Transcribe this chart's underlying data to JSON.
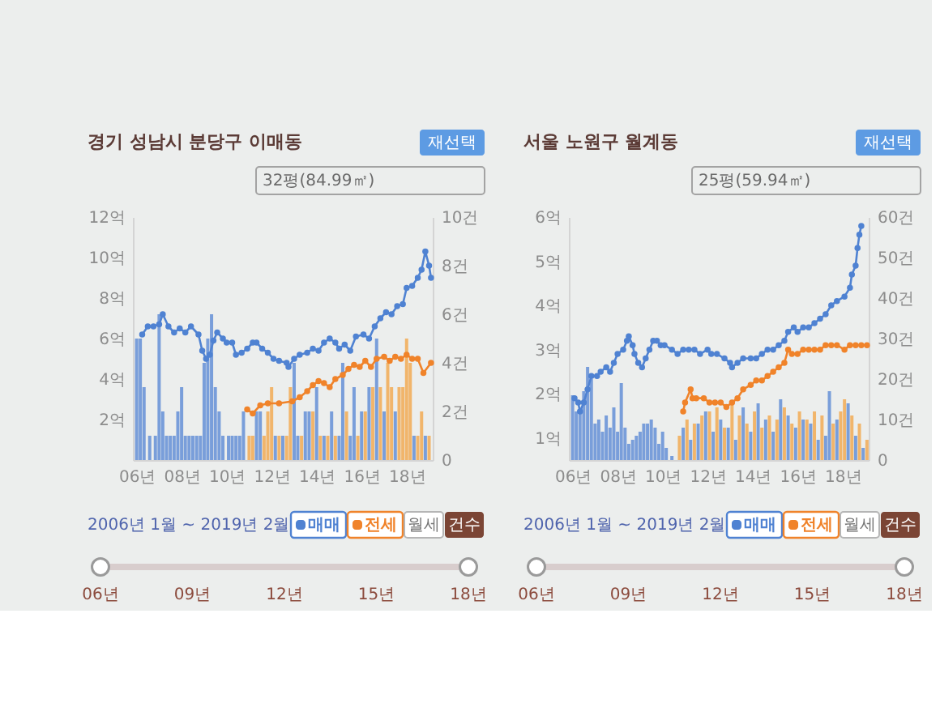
{
  "chart_data": [
    {
      "type": "line",
      "title": "경기 성남시 분당구 이매동",
      "annotations": [
        "재선택",
        "32평(84.99㎡)",
        "2006년 1월 ~ 2019년 2월",
        "월세",
        "건수",
        "06년",
        "09년",
        "12년",
        "15년",
        "18년"
      ],
      "xlim": [
        "2005-11",
        "2019-03"
      ],
      "xticks": [
        {
          "value": "2006",
          "label": "06년"
        },
        {
          "value": "2008",
          "label": "08년"
        },
        {
          "value": "2010",
          "label": "10년"
        },
        {
          "value": "2012",
          "label": "12년"
        },
        {
          "value": "2014",
          "label": "14년"
        },
        {
          "value": "2016",
          "label": "16년"
        },
        {
          "value": "2018",
          "label": "18년"
        }
      ],
      "ylim": [
        0,
        12
      ],
      "yticks": [
        {
          "value": 2,
          "label": "2억"
        },
        {
          "value": 4,
          "label": "4억"
        },
        {
          "value": 6,
          "label": "6억"
        },
        {
          "value": 8,
          "label": "8억"
        },
        {
          "value": 10,
          "label": "10억"
        },
        {
          "value": 12,
          "label": "12억"
        }
      ],
      "y2lim": [
        0,
        10
      ],
      "y2ticks": [
        0,
        {
          "value": 2,
          "label": "2건"
        },
        {
          "value": 4,
          "label": "4건"
        },
        {
          "value": 6,
          "label": "6건"
        },
        {
          "value": 8,
          "label": "8건"
        },
        {
          "value": 10,
          "label": "10건"
        }
      ],
      "legend": "bottom right",
      "marker": "circle",
      "series": [
        {
          "type": "bar",
          "axis": "y2",
          "color": "#5c8ad4",
          "x": [
            "2006-01",
            "2006-03",
            "2006-05",
            "2006-08",
            "2006-11",
            "2007-01",
            "2007-03",
            "2007-05",
            "2007-07",
            "2007-09",
            "2007-11",
            "2008-01",
            "2008-03",
            "2008-05",
            "2008-07",
            "2008-09",
            "2008-11",
            "2009-01",
            "2009-03",
            "2009-05",
            "2009-07",
            "2009-09",
            "2009-11",
            "2010-02",
            "2010-04",
            "2010-06",
            "2010-08",
            "2010-10",
            "2011-05",
            "2011-07",
            "2012-03",
            "2012-07",
            "2013-01",
            "2013-03",
            "2013-07",
            "2013-09",
            "2014-01",
            "2014-05",
            "2014-09",
            "2015-01",
            "2015-03",
            "2015-07",
            "2015-09",
            "2016-01",
            "2016-05",
            "2016-09",
            "2017-01",
            "2017-07",
            "2018-05",
            "2018-11"
          ],
          "values": [
            5,
            5,
            3,
            1,
            1,
            6,
            2,
            1,
            1,
            1,
            2,
            3,
            1,
            1,
            1,
            1,
            1,
            4,
            5,
            6,
            3,
            2,
            1,
            1,
            1,
            1,
            1,
            2,
            2,
            2,
            1,
            1,
            4,
            1,
            2,
            2,
            3,
            1,
            2,
            1,
            4,
            1,
            3,
            2,
            3,
            5,
            2,
            2,
            1,
            1
          ]
        },
        {
          "type": "bar",
          "axis": "y2",
          "color": "#f3a64a",
          "x": [
            "2011-01",
            "2011-03",
            "2011-09",
            "2011-11",
            "2012-01",
            "2012-05",
            "2012-09",
            "2012-11",
            "2013-05",
            "2013-11",
            "2014-03",
            "2014-07",
            "2014-11",
            "2015-05",
            "2015-11",
            "2016-03",
            "2016-07",
            "2016-11",
            "2017-03",
            "2017-05",
            "2017-09",
            "2017-11",
            "2018-01",
            "2018-03",
            "2018-07",
            "2018-09",
            "2019-01"
          ],
          "values": [
            1,
            1,
            1,
            2,
            3,
            1,
            1,
            3,
            1,
            2,
            1,
            1,
            1,
            2,
            1,
            2,
            3,
            3,
            4,
            3,
            3,
            3,
            5,
            4,
            1,
            2,
            1
          ]
        },
        {
          "name": "매매",
          "color": "#4f82d2",
          "x": [
            "2006-04",
            "2006-07",
            "2006-10",
            "2007-01",
            "2007-03",
            "2007-06",
            "2007-09",
            "2007-12",
            "2008-03",
            "2008-06",
            "2008-10",
            "2008-12",
            "2009-02",
            "2009-04",
            "2009-06",
            "2009-08",
            "2009-11",
            "2010-01",
            "2010-04",
            "2010-06",
            "2010-09",
            "2010-12",
            "2011-03",
            "2011-05",
            "2011-08",
            "2011-11",
            "2012-02",
            "2012-05",
            "2012-09",
            "2012-10",
            "2013-01",
            "2013-04",
            "2013-08",
            "2013-11",
            "2014-02",
            "2014-05",
            "2014-08",
            "2014-11",
            "2015-01",
            "2015-04",
            "2015-07",
            "2015-10",
            "2016-02",
            "2016-05",
            "2016-08",
            "2016-11",
            "2017-02",
            "2017-05",
            "2017-08",
            "2017-11",
            "2018-01",
            "2018-04",
            "2018-07",
            "2018-09",
            "2018-11",
            "2019-01",
            "2019-02"
          ],
          "values": [
            6.2,
            6.6,
            6.6,
            6.7,
            7.2,
            6.6,
            6.3,
            6.5,
            6.3,
            6.6,
            6.2,
            5.4,
            5.0,
            5.2,
            5.9,
            6.3,
            6.0,
            5.8,
            5.8,
            5.2,
            5.3,
            5.5,
            5.8,
            5.8,
            5.5,
            5.3,
            5.0,
            4.9,
            4.8,
            4.6,
            5.0,
            5.2,
            5.3,
            5.5,
            5.4,
            5.8,
            6.0,
            5.8,
            5.5,
            5.7,
            5.4,
            6.1,
            6.2,
            6.0,
            6.6,
            7.0,
            7.3,
            7.2,
            7.6,
            7.7,
            8.5,
            8.6,
            9.0,
            9.4,
            10.3,
            9.6,
            9.0
          ]
        },
        {
          "name": "전세",
          "color": "#f0832a",
          "x": [
            "2010-12",
            "2011-03",
            "2011-07",
            "2011-11",
            "2012-05",
            "2012-12",
            "2013-04",
            "2013-08",
            "2013-11",
            "2014-02",
            "2014-05",
            "2014-08",
            "2014-11",
            "2015-03",
            "2015-06",
            "2015-09",
            "2015-12",
            "2016-03",
            "2016-06",
            "2016-09",
            "2017-01",
            "2017-04",
            "2017-07",
            "2017-10",
            "2018-01",
            "2018-04",
            "2018-07",
            "2018-10",
            "2019-02"
          ],
          "values": [
            2.5,
            2.3,
            2.7,
            2.8,
            2.8,
            2.9,
            3.1,
            3.4,
            3.7,
            3.9,
            3.8,
            3.6,
            4.0,
            4.2,
            4.5,
            4.7,
            4.6,
            4.9,
            4.6,
            5.0,
            5.1,
            4.9,
            5.1,
            5.0,
            5.2,
            5.0,
            5.0,
            4.3,
            4.8
          ]
        }
      ]
    },
    {
      "type": "line",
      "title": "서울 노원구 월계동",
      "annotations": [
        "재선택",
        "25평(59.94㎡)",
        "2006년 1월 ~ 2019년 2월",
        "월세",
        "건수",
        "06년",
        "09년",
        "12년",
        "15년",
        "18년"
      ],
      "xlim": [
        "2005-11",
        "2019-03"
      ],
      "xticks": [
        {
          "value": "2006",
          "label": "06년"
        },
        {
          "value": "2008",
          "label": "08년"
        },
        {
          "value": "2010",
          "label": "10년"
        },
        {
          "value": "2012",
          "label": "12년"
        },
        {
          "value": "2014",
          "label": "14년"
        },
        {
          "value": "2016",
          "label": "16년"
        },
        {
          "value": "2018",
          "label": "18년"
        }
      ],
      "ylim": [
        0.5,
        6
      ],
      "yticks": [
        {
          "value": 1,
          "label": "1억"
        },
        {
          "value": 2,
          "label": "2억"
        },
        {
          "value": 3,
          "label": "3억"
        },
        {
          "value": 4,
          "label": "4억"
        },
        {
          "value": 5,
          "label": "5억"
        },
        {
          "value": 6,
          "label": "6억"
        }
      ],
      "y2lim": [
        0,
        60
      ],
      "y2ticks": [
        0,
        {
          "value": 10,
          "label": "10건"
        },
        {
          "value": 20,
          "label": "20건"
        },
        {
          "value": 30,
          "label": "30건"
        },
        {
          "value": 40,
          "label": "40건"
        },
        {
          "value": 50,
          "label": "50건"
        },
        {
          "value": 60,
          "label": "60건"
        }
      ],
      "legend": "bottom right",
      "marker": "circle",
      "series": [
        {
          "type": "bar",
          "axis": "y2",
          "color": "#5c8ad4",
          "x": [
            "2006-01",
            "2006-03",
            "2006-05",
            "2006-07",
            "2006-09",
            "2006-11",
            "2007-01",
            "2007-03",
            "2007-05",
            "2007-07",
            "2007-09",
            "2007-11",
            "2008-01",
            "2008-03",
            "2008-05",
            "2008-07",
            "2008-09",
            "2008-11",
            "2009-01",
            "2009-03",
            "2009-05",
            "2009-07",
            "2009-09",
            "2009-11",
            "2010-01",
            "2010-03",
            "2010-06",
            "2010-12",
            "2011-04",
            "2011-08",
            "2011-12",
            "2012-04",
            "2012-08",
            "2012-12",
            "2013-04",
            "2013-08",
            "2013-12",
            "2014-04",
            "2014-08",
            "2014-12",
            "2015-04",
            "2015-08",
            "2015-12",
            "2016-04",
            "2016-08",
            "2016-12",
            "2017-04",
            "2017-06",
            "2017-10",
            "2018-04",
            "2018-08",
            "2018-12"
          ],
          "values": [
            16,
            12,
            12,
            17,
            23,
            20,
            9,
            10,
            7,
            11,
            8,
            13,
            7,
            19,
            8,
            4,
            5,
            6,
            7,
            9,
            9,
            10,
            8,
            4,
            7,
            3,
            1,
            8,
            5,
            9,
            12,
            7,
            10,
            8,
            5,
            13,
            7,
            14,
            10,
            7,
            15,
            11,
            8,
            10,
            9,
            5,
            6,
            17,
            10,
            14,
            6,
            3
          ]
        },
        {
          "type": "bar",
          "axis": "y2",
          "color": "#f3a64a",
          "x": [
            "2010-10",
            "2011-02",
            "2011-06",
            "2011-10",
            "2012-02",
            "2012-06",
            "2012-10",
            "2013-02",
            "2013-06",
            "2013-10",
            "2014-02",
            "2014-06",
            "2014-10",
            "2015-02",
            "2015-06",
            "2015-10",
            "2016-02",
            "2016-06",
            "2016-10",
            "2017-02",
            "2017-08",
            "2017-12",
            "2018-02",
            "2018-06",
            "2018-10",
            "2019-02"
          ],
          "values": [
            6,
            10,
            9,
            11,
            12,
            13,
            8,
            14,
            11,
            9,
            12,
            8,
            11,
            10,
            13,
            9,
            12,
            10,
            12,
            11,
            9,
            12,
            15,
            11,
            9,
            5
          ]
        },
        {
          "name": "매매",
          "color": "#4f82d2",
          "x": [
            "2006-02",
            "2006-04",
            "2006-05",
            "2006-07",
            "2006-09",
            "2006-11",
            "2007-02",
            "2007-04",
            "2007-07",
            "2007-09",
            "2007-11",
            "2008-01",
            "2008-04",
            "2008-06",
            "2008-07",
            "2008-09",
            "2008-10",
            "2008-12",
            "2009-02",
            "2009-04",
            "2009-06",
            "2009-08",
            "2009-10",
            "2009-12",
            "2010-02",
            "2010-06",
            "2010-09",
            "2010-12",
            "2011-03",
            "2011-06",
            "2011-09",
            "2012-01",
            "2012-03",
            "2012-06",
            "2012-10",
            "2013-01",
            "2013-02",
            "2013-05",
            "2013-08",
            "2013-12",
            "2014-03",
            "2014-06",
            "2014-09",
            "2014-12",
            "2015-03",
            "2015-06",
            "2015-08",
            "2015-11",
            "2016-01",
            "2016-04",
            "2016-07",
            "2016-10",
            "2017-01",
            "2017-04",
            "2017-07",
            "2017-10",
            "2018-02",
            "2018-05",
            "2018-06",
            "2018-08",
            "2018-09",
            "2018-10",
            "2018-11"
          ],
          "values": [
            1.9,
            1.8,
            1.6,
            1.8,
            2.1,
            2.4,
            2.4,
            2.5,
            2.6,
            2.5,
            2.7,
            2.9,
            3.0,
            3.2,
            3.3,
            3.1,
            2.9,
            2.7,
            2.6,
            2.8,
            3.0,
            3.2,
            3.2,
            3.1,
            3.1,
            3.0,
            2.9,
            3.0,
            3.0,
            3.0,
            2.9,
            3.0,
            2.9,
            2.9,
            2.8,
            2.7,
            2.6,
            2.7,
            2.8,
            2.8,
            2.8,
            2.9,
            3.0,
            3.0,
            3.1,
            3.2,
            3.4,
            3.5,
            3.4,
            3.5,
            3.5,
            3.6,
            3.7,
            3.8,
            4.0,
            4.1,
            4.2,
            4.4,
            4.7,
            4.9,
            5.3,
            5.6,
            5.8
          ]
        },
        {
          "name": "전세",
          "color": "#f0832a",
          "x": [
            "2010-12",
            "2011-01",
            "2011-04",
            "2011-05",
            "2011-07",
            "2011-11",
            "2012-02",
            "2012-05",
            "2012-08",
            "2012-11",
            "2013-02",
            "2013-05",
            "2013-08",
            "2013-12",
            "2014-03",
            "2014-06",
            "2014-09",
            "2014-12",
            "2015-03",
            "2015-06",
            "2015-08",
            "2015-10",
            "2016-01",
            "2016-04",
            "2016-07",
            "2016-10",
            "2017-01",
            "2017-04",
            "2017-07",
            "2017-10",
            "2018-02",
            "2018-05",
            "2018-08",
            "2018-11",
            "2019-02"
          ],
          "values": [
            1.6,
            1.8,
            2.1,
            1.9,
            1.9,
            1.9,
            1.8,
            1.8,
            1.8,
            1.7,
            1.8,
            1.9,
            2.1,
            2.2,
            2.3,
            2.3,
            2.4,
            2.5,
            2.6,
            2.7,
            3.0,
            2.9,
            2.9,
            3.0,
            3.0,
            3.0,
            3.0,
            3.1,
            3.1,
            3.1,
            3.0,
            3.1,
            3.1,
            3.1,
            3.1
          ]
        }
      ]
    }
  ]
}
